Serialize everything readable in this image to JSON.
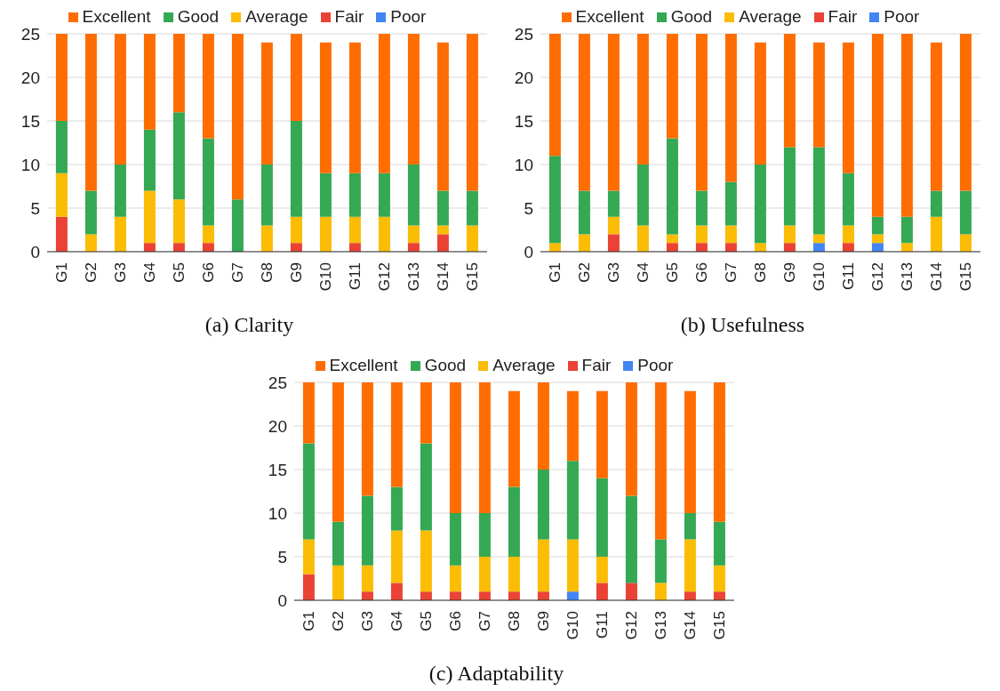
{
  "chart_data": [
    {
      "type": "bar",
      "title": "(a) Clarity",
      "stacked": true,
      "legend": "top",
      "grid": "y",
      "categories": [
        "G1",
        "G2",
        "G3",
        "G4",
        "G5",
        "G6",
        "G7",
        "G8",
        "G9",
        "G10",
        "G11",
        "G12",
        "G13",
        "G14",
        "G15"
      ],
      "ylim": [
        0,
        25
      ],
      "yticks": [
        0,
        5,
        10,
        15,
        20,
        25
      ],
      "series": [
        {
          "name": "Poor",
          "color": "#4285f4",
          "values": [
            0,
            0,
            0,
            0,
            0,
            0,
            0,
            0,
            0,
            0,
            0,
            0,
            0,
            0,
            0
          ]
        },
        {
          "name": "Fair",
          "color": "#ea4335",
          "values": [
            4,
            0,
            0,
            1,
            1,
            1,
            0,
            0,
            1,
            0,
            1,
            0,
            1,
            2,
            0
          ]
        },
        {
          "name": "Average",
          "color": "#fbbc04",
          "values": [
            5,
            2,
            4,
            6,
            5,
            2,
            0,
            3,
            3,
            4,
            3,
            4,
            2,
            1,
            3
          ]
        },
        {
          "name": "Good",
          "color": "#34a853",
          "values": [
            6,
            5,
            6,
            7,
            10,
            10,
            6,
            7,
            11,
            5,
            5,
            5,
            7,
            4,
            4
          ]
        },
        {
          "name": "Excellent",
          "color": "#ff6d01",
          "values": [
            10,
            18,
            15,
            11,
            9,
            12,
            19,
            14,
            10,
            15,
            15,
            16,
            15,
            17,
            18
          ]
        }
      ]
    },
    {
      "type": "bar",
      "title": "(b) Usefulness",
      "stacked": true,
      "legend": "top",
      "grid": "y",
      "categories": [
        "G1",
        "G2",
        "G3",
        "G4",
        "G5",
        "G6",
        "G7",
        "G8",
        "G9",
        "G10",
        "G11",
        "G12",
        "G13",
        "G14",
        "G15"
      ],
      "ylim": [
        0,
        25
      ],
      "yticks": [
        0,
        5,
        10,
        15,
        20,
        25
      ],
      "series": [
        {
          "name": "Poor",
          "color": "#4285f4",
          "values": [
            0,
            0,
            0,
            0,
            0,
            0,
            0,
            0,
            0,
            1,
            0,
            1,
            0,
            0,
            0
          ]
        },
        {
          "name": "Fair",
          "color": "#ea4335",
          "values": [
            0,
            0,
            2,
            0,
            1,
            1,
            1,
            0,
            1,
            0,
            1,
            0,
            0,
            0,
            0
          ]
        },
        {
          "name": "Average",
          "color": "#fbbc04",
          "values": [
            1,
            2,
            2,
            3,
            1,
            2,
            2,
            1,
            2,
            1,
            2,
            1,
            1,
            4,
            2
          ]
        },
        {
          "name": "Good",
          "color": "#34a853",
          "values": [
            10,
            5,
            3,
            7,
            11,
            4,
            5,
            9,
            9,
            10,
            6,
            2,
            3,
            3,
            5
          ]
        },
        {
          "name": "Excellent",
          "color": "#ff6d01",
          "values": [
            14,
            18,
            18,
            15,
            12,
            18,
            17,
            14,
            13,
            12,
            15,
            21,
            21,
            17,
            18
          ]
        }
      ]
    },
    {
      "type": "bar",
      "title": "(c) Adaptability",
      "stacked": true,
      "legend": "top",
      "grid": "y",
      "categories": [
        "G1",
        "G2",
        "G3",
        "G4",
        "G5",
        "G6",
        "G7",
        "G8",
        "G9",
        "G10",
        "G11",
        "G12",
        "G13",
        "G14",
        "G15"
      ],
      "ylim": [
        0,
        25
      ],
      "yticks": [
        0,
        5,
        10,
        15,
        20,
        25
      ],
      "series": [
        {
          "name": "Poor",
          "color": "#4285f4",
          "values": [
            0,
            0,
            0,
            0,
            0,
            0,
            0,
            0,
            0,
            1,
            0,
            0,
            0,
            0,
            0
          ]
        },
        {
          "name": "Fair",
          "color": "#ea4335",
          "values": [
            3,
            0,
            1,
            2,
            1,
            1,
            1,
            1,
            1,
            0,
            2,
            2,
            0,
            1,
            1
          ]
        },
        {
          "name": "Average",
          "color": "#fbbc04",
          "values": [
            4,
            4,
            3,
            6,
            7,
            3,
            4,
            4,
            6,
            6,
            3,
            0,
            2,
            6,
            3
          ]
        },
        {
          "name": "Good",
          "color": "#34a853",
          "values": [
            11,
            5,
            8,
            5,
            10,
            6,
            5,
            8,
            8,
            9,
            9,
            10,
            5,
            3,
            5
          ]
        },
        {
          "name": "Excellent",
          "color": "#ff6d01",
          "values": [
            7,
            16,
            13,
            12,
            7,
            15,
            15,
            11,
            10,
            8,
            10,
            13,
            18,
            14,
            16
          ]
        }
      ]
    }
  ]
}
